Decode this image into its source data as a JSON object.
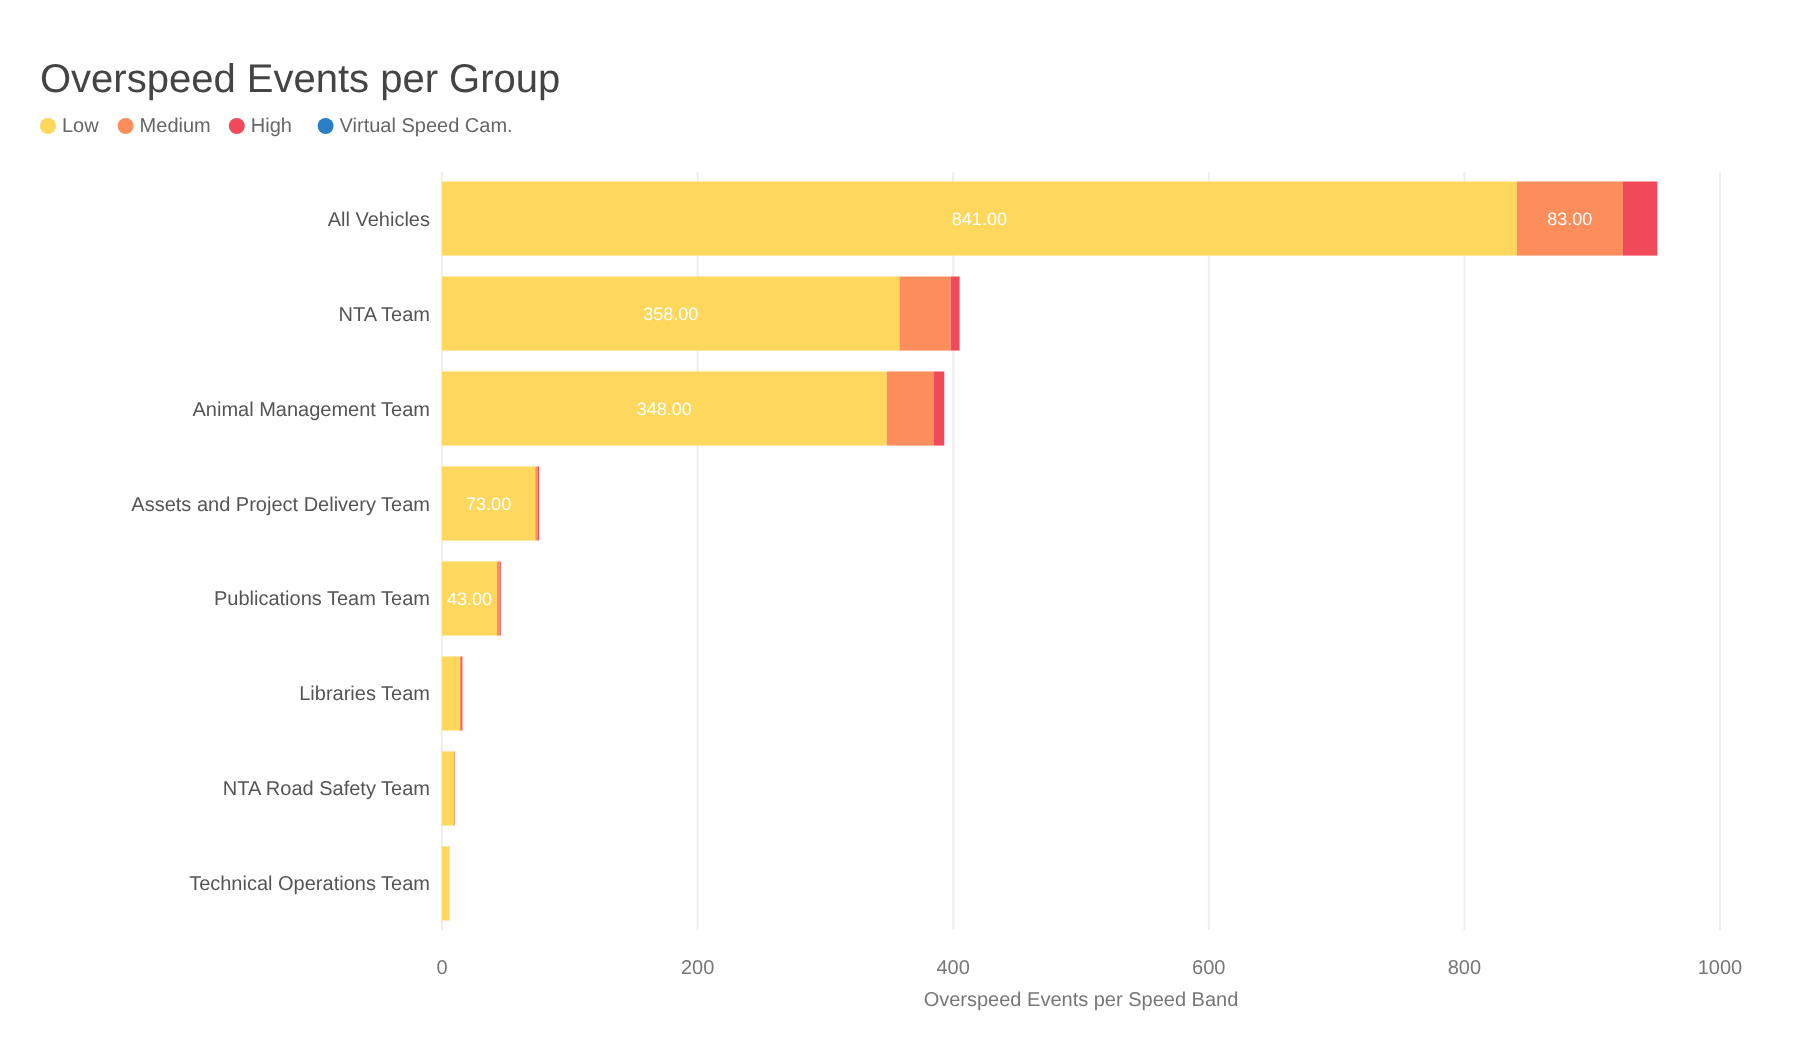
{
  "chart_data": {
    "type": "bar",
    "title": "Overspeed Events per Group",
    "xlabel": "Overspeed Events per Speed Band",
    "orientation": "horizontal",
    "stacked": true,
    "legend": "top left",
    "grid": "x",
    "categories": [
      "All Vehicles",
      "NTA Team",
      "Animal Management Team",
      "Assets and Project Delivery Team",
      "Publications Team Team",
      "Libraries Team",
      "NTA Road Safety Team",
      "Technical Operations Team"
    ],
    "xlim": [
      0,
      1000
    ],
    "xticks": [
      0,
      200,
      400,
      600,
      800,
      1000
    ],
    "series": [
      {
        "name": "Low",
        "color": "#fdd85d",
        "values": [
          841,
          358,
          348,
          73,
          43,
          14,
          9,
          6
        ],
        "value_labels": [
          "841.00",
          "358.00",
          "348.00",
          "73.00",
          "43.00",
          null,
          null,
          null
        ]
      },
      {
        "name": "Medium",
        "color": "#fd8d5a",
        "values": [
          83,
          40,
          37,
          2,
          2,
          1,
          1,
          null
        ],
        "value_labels": [
          "83.00",
          null,
          null,
          null,
          null,
          null,
          null,
          null
        ]
      },
      {
        "name": "High",
        "color": "#f04a5a",
        "values": [
          27,
          7,
          8,
          1,
          1,
          1,
          null,
          null
        ]
      },
      {
        "name": "Virtual Speed Cam.",
        "color": "#2b7fc4",
        "values": [
          null,
          null,
          null,
          null,
          null,
          null,
          null,
          null
        ]
      }
    ]
  }
}
